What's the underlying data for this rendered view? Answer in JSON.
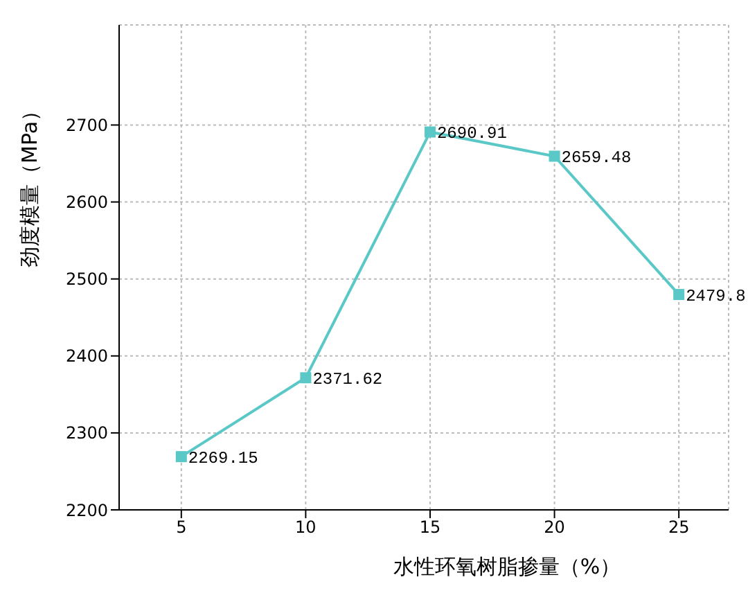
{
  "chart_data": {
    "type": "line",
    "xlabel": "水性环氧树脂掺量（%）",
    "ylabel": "劲度模量（MPa）",
    "x": [
      5,
      10,
      15,
      20,
      25
    ],
    "series": [
      {
        "color": "#5bc8c8",
        "values": [
          2269.15,
          2371.62,
          2690.91,
          2659.48,
          2479.8
        ]
      }
    ],
    "xlim": [
      2.5,
      27
    ],
    "xticks": [
      5,
      10,
      15,
      20,
      25
    ],
    "ylim": [
      2200,
      2830
    ],
    "yticks": [
      2200,
      2300,
      2400,
      2500,
      2600,
      2700
    ],
    "grid": true,
    "marker": "square",
    "line_style": "solid",
    "data_labels": true,
    "legend": false
  }
}
